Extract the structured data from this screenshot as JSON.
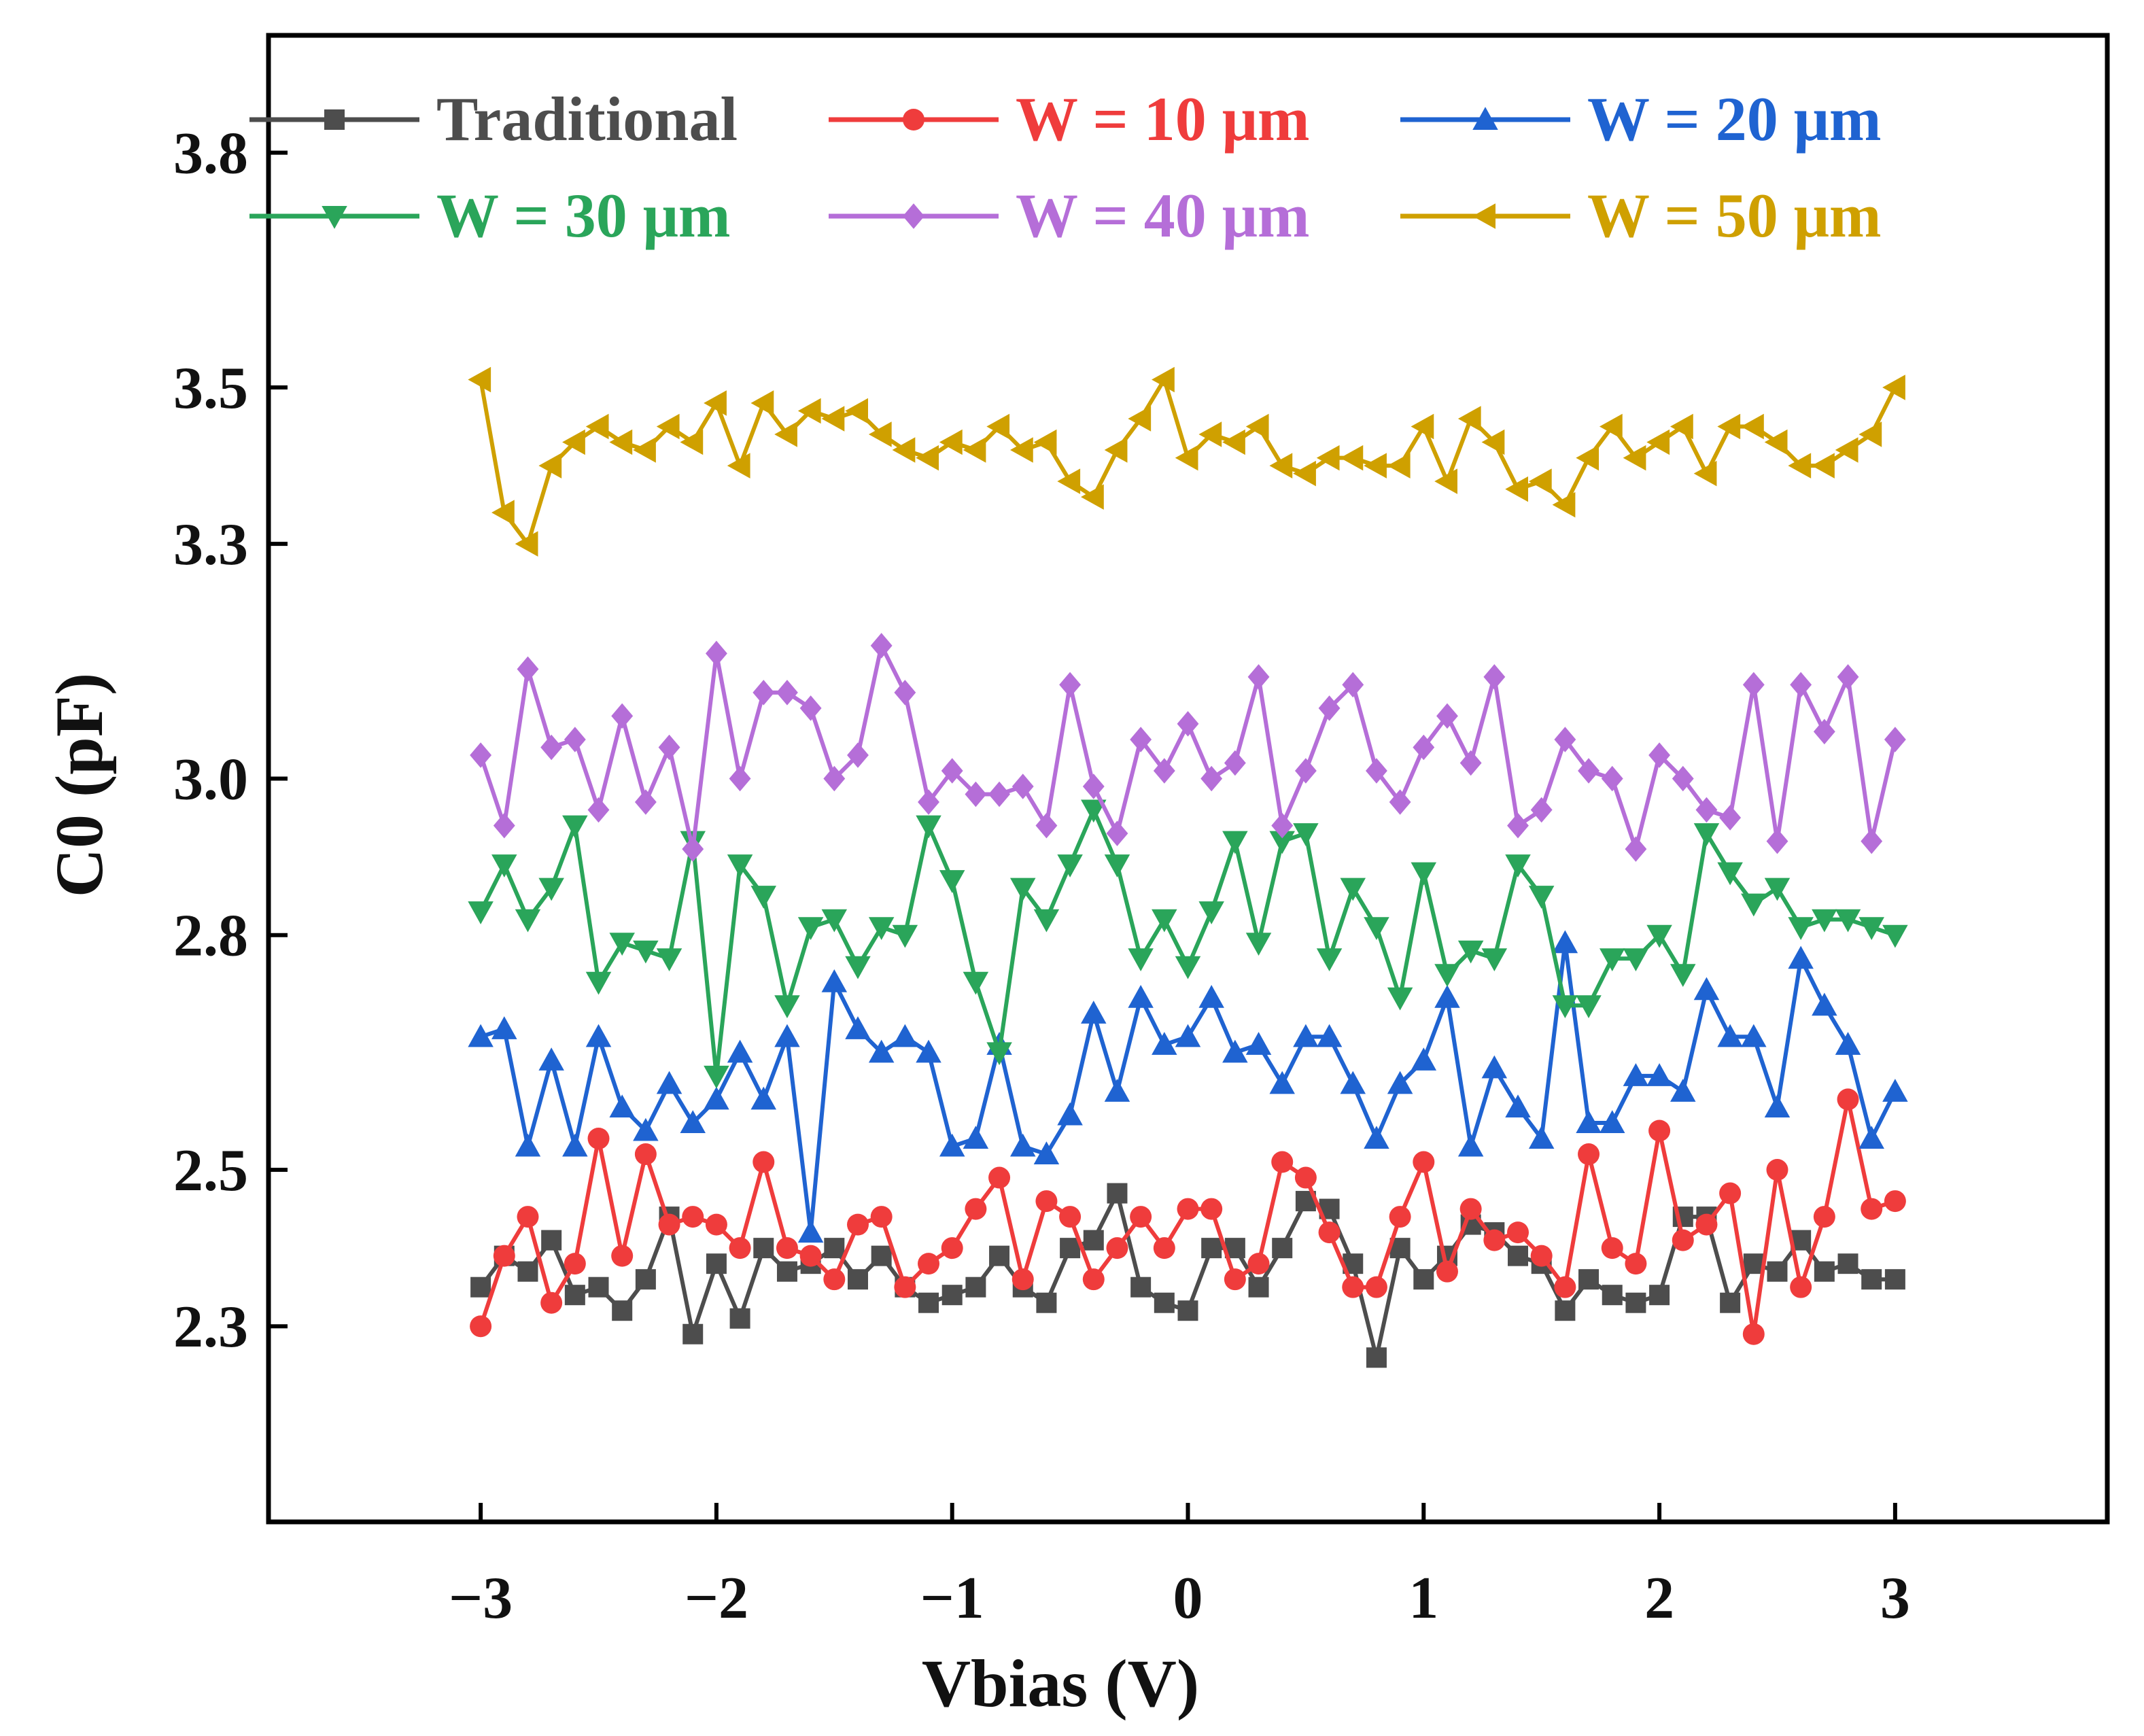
{
  "chart_data": {
    "type": "line",
    "title": "",
    "xlabel": "Vbias (V)",
    "ylabel": "C0 (pF)",
    "xlim": [
      -3.9,
      3.9
    ],
    "ylim": [
      2.05,
      3.95
    ],
    "xticks": [
      -3,
      -2,
      -1,
      0,
      1,
      2,
      3
    ],
    "xtick_labels": [
      "−3",
      "−2",
      "−1",
      "0",
      "1",
      "2",
      "3"
    ],
    "yticks": [
      2.3,
      2.5,
      2.8,
      3.0,
      3.3,
      3.5,
      3.8
    ],
    "ytick_labels": [
      "2.3",
      "2.5",
      "2.8",
      "3.0",
      "3.3",
      "3.5",
      "3.8"
    ],
    "grid": false,
    "legend_position": "top",
    "x": [
      -3.0,
      -2.9,
      -2.8,
      -2.7,
      -2.6,
      -2.5,
      -2.4,
      -2.3,
      -2.2,
      -2.1,
      -2.0,
      -1.9,
      -1.8,
      -1.7,
      -1.6,
      -1.5,
      -1.4,
      -1.3,
      -1.2,
      -1.1,
      -1.0,
      -0.9,
      -0.8,
      -0.7,
      -0.6,
      -0.5,
      -0.4,
      -0.3,
      -0.2,
      -0.1,
      0.0,
      0.1,
      0.2,
      0.3,
      0.4,
      0.5,
      0.6,
      0.7,
      0.8,
      0.9,
      1.0,
      1.1,
      1.2,
      1.3,
      1.4,
      1.5,
      1.6,
      1.7,
      1.8,
      1.9,
      2.0,
      2.1,
      2.2,
      2.3,
      2.4,
      2.5,
      2.6,
      2.7,
      2.8,
      2.9,
      3.0
    ],
    "series": [
      {
        "name": "Traditional",
        "color": "#4d4d4d",
        "marker": "square",
        "values": [
          2.35,
          2.39,
          2.37,
          2.41,
          2.34,
          2.35,
          2.32,
          2.36,
          2.44,
          2.29,
          2.38,
          2.31,
          2.4,
          2.37,
          2.38,
          2.4,
          2.36,
          2.39,
          2.35,
          2.33,
          2.34,
          2.35,
          2.39,
          2.35,
          2.33,
          2.4,
          2.41,
          2.47,
          2.35,
          2.33,
          2.32,
          2.4,
          2.4,
          2.35,
          2.4,
          2.46,
          2.45,
          2.38,
          2.26,
          2.4,
          2.36,
          2.39,
          2.43,
          2.42,
          2.39,
          2.38,
          2.32,
          2.36,
          2.34,
          2.33,
          2.34,
          2.44,
          2.44,
          2.33,
          2.38,
          2.37,
          2.41,
          2.37,
          2.38,
          2.36,
          2.36
        ]
      },
      {
        "name": "W = 10 μm",
        "color": "#ef3c3c",
        "marker": "circle",
        "values": [
          2.3,
          2.39,
          2.44,
          2.33,
          2.38,
          2.54,
          2.39,
          2.52,
          2.43,
          2.44,
          2.43,
          2.4,
          2.51,
          2.4,
          2.39,
          2.36,
          2.43,
          2.44,
          2.35,
          2.38,
          2.4,
          2.45,
          2.49,
          2.36,
          2.46,
          2.44,
          2.36,
          2.4,
          2.44,
          2.4,
          2.45,
          2.45,
          2.36,
          2.38,
          2.51,
          2.49,
          2.42,
          2.35,
          2.35,
          2.44,
          2.51,
          2.37,
          2.45,
          2.41,
          2.42,
          2.39,
          2.35,
          2.52,
          2.4,
          2.38,
          2.55,
          2.41,
          2.43,
          2.47,
          2.29,
          2.5,
          2.35,
          2.44,
          2.59,
          2.45,
          2.46
        ]
      },
      {
        "name": "W = 20 μm",
        "color": "#1f63d1",
        "marker": "triangle-up",
        "values": [
          2.67,
          2.68,
          2.53,
          2.64,
          2.53,
          2.67,
          2.58,
          2.55,
          2.61,
          2.56,
          2.59,
          2.65,
          2.59,
          2.67,
          2.42,
          2.74,
          2.68,
          2.65,
          2.67,
          2.65,
          2.53,
          2.54,
          2.66,
          2.53,
          2.52,
          2.57,
          2.7,
          2.6,
          2.72,
          2.66,
          2.67,
          2.72,
          2.65,
          2.66,
          2.61,
          2.67,
          2.67,
          2.61,
          2.54,
          2.61,
          2.64,
          2.72,
          2.53,
          2.63,
          2.58,
          2.54,
          2.79,
          2.56,
          2.56,
          2.62,
          2.62,
          2.6,
          2.73,
          2.67,
          2.67,
          2.58,
          2.77,
          2.71,
          2.66,
          2.54,
          2.6
        ]
      },
      {
        "name": "W = 30 μm",
        "color": "#2aa55a",
        "marker": "triangle-down",
        "values": [
          2.83,
          2.89,
          2.82,
          2.86,
          2.94,
          2.74,
          2.79,
          2.78,
          2.77,
          2.92,
          2.62,
          2.89,
          2.85,
          2.71,
          2.81,
          2.82,
          2.76,
          2.81,
          2.8,
          2.94,
          2.87,
          2.74,
          2.65,
          2.86,
          2.82,
          2.89,
          2.96,
          2.89,
          2.77,
          2.82,
          2.76,
          2.83,
          2.92,
          2.79,
          2.92,
          2.93,
          2.77,
          2.86,
          2.81,
          2.72,
          2.88,
          2.75,
          2.78,
          2.77,
          2.89,
          2.85,
          2.71,
          2.71,
          2.77,
          2.77,
          2.8,
          2.75,
          2.93,
          2.88,
          2.84,
          2.86,
          2.81,
          2.82,
          2.82,
          2.81,
          2.8
        ]
      },
      {
        "name": "W = 40 μm",
        "color": "#b56ed8",
        "marker": "diamond",
        "values": [
          3.03,
          2.94,
          3.14,
          3.04,
          3.05,
          2.96,
          3.08,
          2.97,
          3.04,
          2.91,
          3.16,
          3.0,
          3.11,
          3.11,
          3.09,
          3.0,
          3.03,
          3.17,
          3.11,
          2.97,
          3.01,
          2.98,
          2.98,
          2.99,
          2.94,
          3.12,
          2.99,
          2.93,
          3.05,
          3.01,
          3.07,
          3.0,
          3.02,
          3.13,
          2.94,
          3.01,
          3.09,
          3.12,
          3.01,
          2.97,
          3.04,
          3.08,
          3.02,
          3.13,
          2.94,
          2.96,
          3.05,
          3.01,
          3.0,
          2.91,
          3.03,
          3.0,
          2.96,
          2.95,
          3.12,
          2.92,
          3.12,
          3.06,
          3.13,
          2.92,
          3.05
        ]
      },
      {
        "name": "W = 50 μm",
        "color": "#cfa000",
        "marker": "triangle-left",
        "values": [
          3.51,
          3.34,
          3.3,
          3.4,
          3.43,
          3.45,
          3.43,
          3.42,
          3.45,
          3.43,
          3.48,
          3.4,
          3.48,
          3.44,
          3.47,
          3.46,
          3.47,
          3.44,
          3.42,
          3.41,
          3.43,
          3.42,
          3.45,
          3.42,
          3.43,
          3.38,
          3.36,
          3.42,
          3.46,
          3.51,
          3.41,
          3.44,
          3.43,
          3.45,
          3.4,
          3.39,
          3.41,
          3.41,
          3.4,
          3.4,
          3.45,
          3.38,
          3.46,
          3.43,
          3.37,
          3.38,
          3.35,
          3.41,
          3.45,
          3.41,
          3.43,
          3.45,
          3.39,
          3.45,
          3.45,
          3.43,
          3.4,
          3.4,
          3.42,
          3.44,
          3.5
        ]
      }
    ]
  }
}
